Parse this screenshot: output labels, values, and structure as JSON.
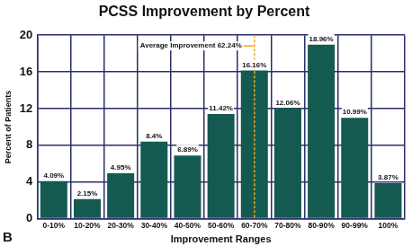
{
  "chart_data": {
    "type": "bar",
    "title": "PCSS Improvement by Percent",
    "panel_label": "B",
    "x_label": "Improvement Ranges",
    "y_label": "Percent of Patients",
    "categories": [
      "0-10%",
      "10-20%",
      "20-30%",
      "30-40%",
      "40-50%",
      "50-60%",
      "60-70%",
      "70-80%",
      "80-90%",
      "90-99%",
      "100%"
    ],
    "values": [
      4.09,
      2.15,
      4.95,
      8.4,
      6.89,
      11.42,
      16.16,
      12.06,
      18.96,
      10.99,
      3.87
    ],
    "value_labels": [
      "4.09%",
      "2.15%",
      "4.95%",
      "8.4%",
      "6.89%",
      "11.42%",
      "16.16%",
      "12.06%",
      "18.96%",
      "10.99%",
      "3.87%"
    ],
    "data_labels": true,
    "color": "#145a50",
    "ylim": [
      0,
      20
    ],
    "yticks": [
      0,
      4,
      8,
      12,
      16,
      20
    ],
    "grid": true,
    "annotations": [
      {
        "label": "Average Improvement 62.24%",
        "category": "60-70%",
        "color": "#f5a623"
      }
    ]
  }
}
